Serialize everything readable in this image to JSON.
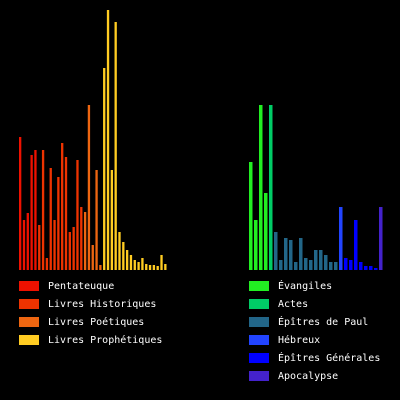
{
  "chart_data": [
    {
      "type": "bar",
      "series": [
        {
          "name": "Pentateuque",
          "color": "#ee1100",
          "values": [
            133,
            50,
            57,
            115,
            120
          ]
        },
        {
          "name": "Livres Historiques",
          "color": "#ee3300",
          "values": [
            45,
            120,
            12,
            102,
            50,
            93,
            127,
            113,
            38,
            43,
            110,
            63
          ]
        },
        {
          "name": "Livres Poétiques",
          "color": "#ee6611",
          "values": [
            58,
            165,
            25,
            100,
            5
          ]
        },
        {
          "name": "Livres Prophétiques",
          "color": "#ffcc22",
          "values": [
            202,
            260,
            100,
            248,
            38,
            28,
            20,
            15,
            10,
            8,
            12,
            6,
            5,
            5,
            4,
            15,
            6
          ]
        }
      ]
    },
    {
      "type": "bar",
      "series": [
        {
          "name": "Évangiles",
          "color": "#22ee22",
          "values": [
            108,
            50,
            165,
            77
          ]
        },
        {
          "name": "Actes",
          "color": "#00cc66",
          "values": [
            165
          ]
        },
        {
          "name": "Épîtres de Paul",
          "color": "#226688",
          "values": [
            38,
            10,
            32,
            30,
            8,
            32,
            12,
            10,
            20,
            20,
            15,
            8,
            8
          ]
        },
        {
          "name": "Hébreux",
          "color": "#2244ff",
          "values": [
            63
          ]
        },
        {
          "name": "Épîtres Générales",
          "color": "#0000ff",
          "values": [
            12,
            10,
            50,
            8,
            4,
            4,
            2
          ]
        },
        {
          "name": "Apocalypse",
          "color": "#4422cc",
          "values": [
            63
          ]
        }
      ]
    }
  ]
}
